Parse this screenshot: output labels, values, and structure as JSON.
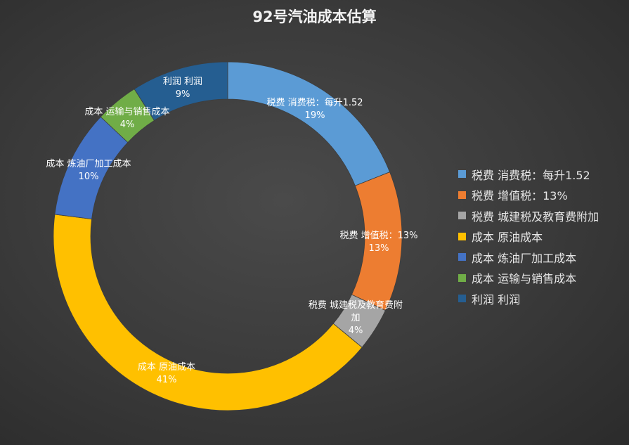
{
  "chart_data": {
    "type": "pie",
    "title": "92号汽油成本估算",
    "slices": [
      {
        "label": "税费 消费税：每升1.52",
        "label_lines": [
          "税费 消费税：每升1.52"
        ],
        "percent_text": "19%",
        "value": 19,
        "color": "#5b9bd5"
      },
      {
        "label": "税费 增值税：13%",
        "label_lines": [
          "税费 增值税：13%"
        ],
        "percent_text": "13%",
        "value": 13,
        "color": "#ed7d31"
      },
      {
        "label": "税费 城建税及教育费附加",
        "label_lines": [
          "税费 城建税及教育费附",
          "加"
        ],
        "percent_text": "4%",
        "value": 4,
        "color": "#a5a5a5"
      },
      {
        "label": "成本 原油成本",
        "label_lines": [
          "成本 原油成本"
        ],
        "percent_text": "41%",
        "value": 41,
        "color": "#ffc000"
      },
      {
        "label": "成本 炼油厂加工成本",
        "label_lines": [
          "成本 炼油厂加工成本"
        ],
        "percent_text": "10%",
        "value": 10,
        "color": "#4472c4"
      },
      {
        "label": "成本 运输与销售成本",
        "label_lines": [
          "成本 运输与销售成本"
        ],
        "percent_text": "4%",
        "value": 4,
        "color": "#70ad47"
      },
      {
        "label": "利润 利润",
        "label_lines": [
          "利润 利润"
        ],
        "percent_text": "9%",
        "value": 9,
        "color": "#255e91"
      }
    ],
    "legend_position": "right"
  }
}
